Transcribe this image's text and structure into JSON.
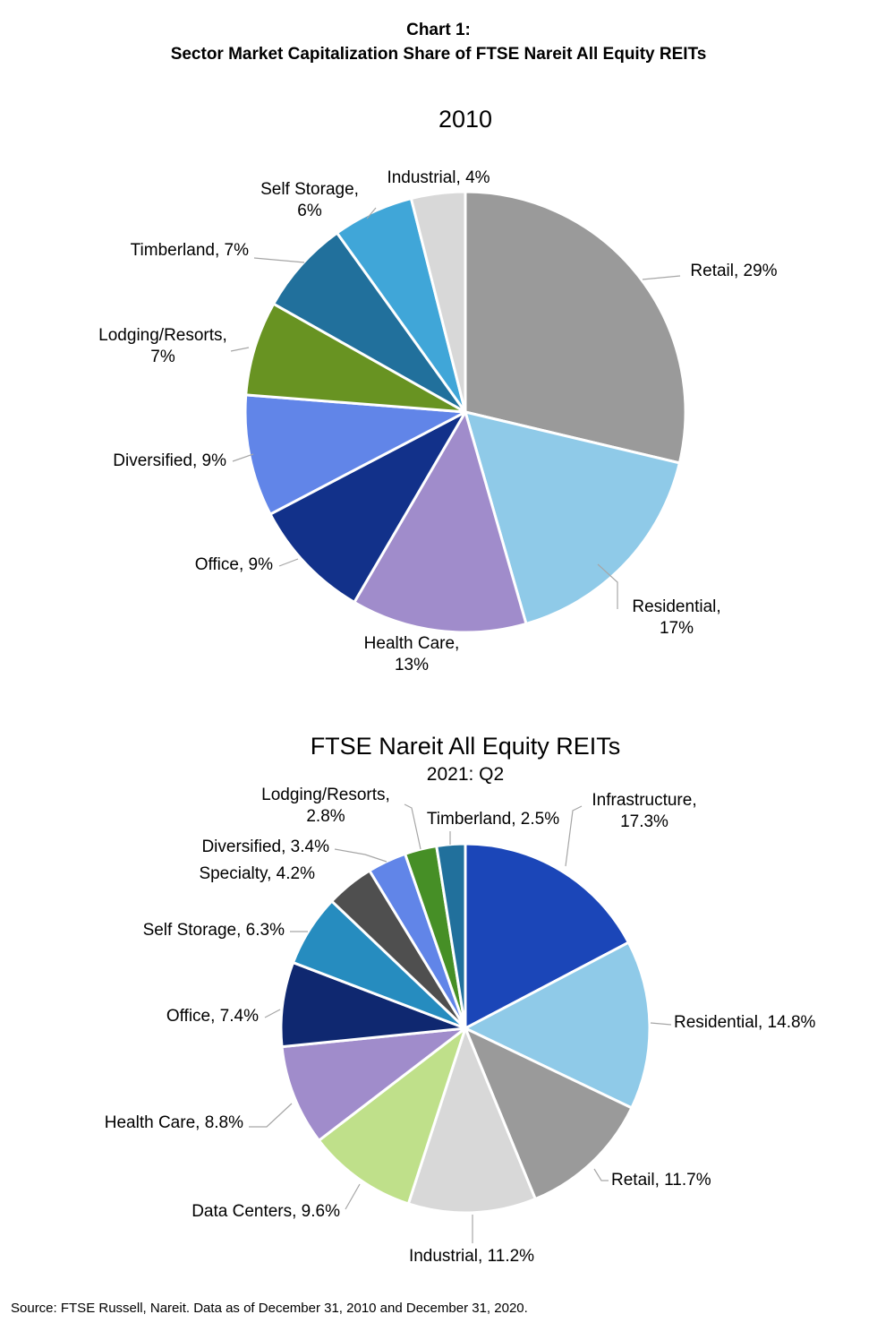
{
  "header": {
    "line1": "Chart 1:",
    "line2": "Sector Market Capitalization Share of FTSE Nareit All Equity REITs"
  },
  "source": "Source: FTSE Russell, Nareit. Data as of December 31, 2010 and December 31, 2020.",
  "chart_data": [
    {
      "type": "pie",
      "title": "2010",
      "subtitle": "",
      "slices": [
        {
          "label": "Retail, 29%",
          "value": 29,
          "color": "#9a9a9a"
        },
        {
          "label": "Residential, 17%",
          "value": 17,
          "color": "#8fcae8"
        },
        {
          "label": "Health Care, 13%",
          "value": 13,
          "color": "#a08ccb"
        },
        {
          "label": "Office, 9%",
          "value": 9,
          "color": "#12318a"
        },
        {
          "label": "Diversified, 9%",
          "value": 9,
          "color": "#6185e8"
        },
        {
          "label": "Lodging/Resorts, 7%",
          "value": 7,
          "color": "#689322"
        },
        {
          "label": "Timberland, 7%",
          "value": 7,
          "color": "#21709c"
        },
        {
          "label": "Self Storage, 6%",
          "value": 6,
          "color": "#40a6d8"
        },
        {
          "label": "Industrial, 4%",
          "value": 4,
          "color": "#d8d8d8"
        }
      ]
    },
    {
      "type": "pie",
      "title": "FTSE Nareit All Equity REITs",
      "subtitle": "2021: Q2",
      "slices": [
        {
          "label": "Infrastructure, 17.3%",
          "value": 17.3,
          "color": "#1b46b8"
        },
        {
          "label": "Residential, 14.8%",
          "value": 14.8,
          "color": "#8fcae8"
        },
        {
          "label": "Retail, 11.7%",
          "value": 11.7,
          "color": "#9a9a9a"
        },
        {
          "label": "Industrial, 11.2%",
          "value": 11.2,
          "color": "#d8d8d8"
        },
        {
          "label": "Data Centers, 9.6%",
          "value": 9.6,
          "color": "#bfe08a"
        },
        {
          "label": "Health Care, 8.8%",
          "value": 8.8,
          "color": "#a08ccb"
        },
        {
          "label": "Office, 7.4%",
          "value": 7.4,
          "color": "#0f2870"
        },
        {
          "label": "Self Storage, 6.3%",
          "value": 6.3,
          "color": "#268cbf"
        },
        {
          "label": "Specialty, 4.2%",
          "value": 4.2,
          "color": "#4f4f4f"
        },
        {
          "label": "Diversified, 3.4%",
          "value": 3.4,
          "color": "#6185e8"
        },
        {
          "label": "Lodging/Resorts, 2.8%",
          "value": 2.8,
          "color": "#468f26"
        },
        {
          "label": "Timberland, 2.5%",
          "value": 2.5,
          "color": "#21709c"
        }
      ]
    }
  ]
}
